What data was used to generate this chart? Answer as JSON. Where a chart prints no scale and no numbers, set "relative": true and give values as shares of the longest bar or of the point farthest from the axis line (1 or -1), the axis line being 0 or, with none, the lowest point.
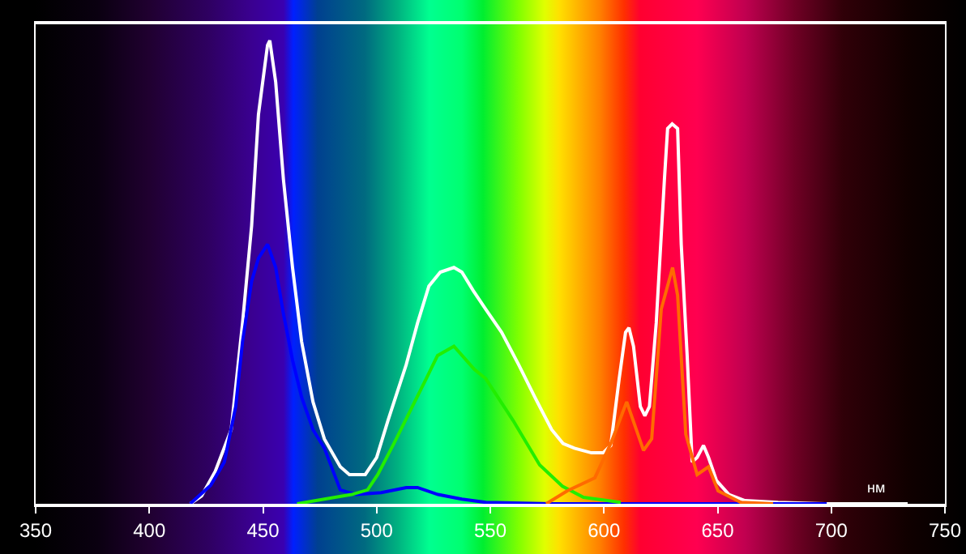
{
  "chart_data": {
    "type": "line",
    "relative": true,
    "xlabel": "нм",
    "xlim": [
      350,
      750
    ],
    "xticks": [
      350,
      400,
      450,
      500,
      550,
      600,
      650,
      700,
      750
    ],
    "marker": "none",
    "line_style": "solid",
    "series": [
      {
        "color": "#ffffff",
        "x": [
          418,
          423,
          429,
          436,
          441,
          445,
          448,
          452,
          453,
          455.6,
          459,
          463,
          467,
          472,
          477,
          484,
          488,
          495,
          500,
          505,
          513,
          518,
          523,
          528,
          534,
          537.5,
          542.5,
          548,
          555,
          562.5,
          569.6,
          577,
          582,
          587,
          594.5,
          599.6,
          603,
          606.7,
          609.5,
          611,
          613,
          616,
          618,
          620,
          623,
          626.6,
          628,
          630,
          632.4,
          634,
          636.6,
          638.8,
          641,
          643.8,
          646,
          649.5,
          655,
          662,
          676.6,
          698,
          733.6
        ],
        "values": [
          0,
          0.017,
          0.07,
          0.16,
          0.39,
          0.6,
          0.84,
          0.99,
          1,
          0.91,
          0.7,
          0.51,
          0.35,
          0.22,
          0.14,
          0.08,
          0.063,
          0.063,
          0.1,
          0.18,
          0.3,
          0.39,
          0.47,
          0.5,
          0.51,
          0.5,
          0.46,
          0.42,
          0.37,
          0.3,
          0.23,
          0.16,
          0.13,
          0.12,
          0.11,
          0.11,
          0.126,
          0.27,
          0.37,
          0.38,
          0.34,
          0.21,
          0.19,
          0.21,
          0.39,
          0.7,
          0.81,
          0.82,
          0.81,
          0.56,
          0.32,
          0.09,
          0.1,
          0.126,
          0.1,
          0.05,
          0.02,
          0.007,
          0.003,
          0,
          0
        ]
      },
      {
        "color": "#0000ff",
        "x": [
          418,
          427,
          433,
          438,
          441,
          445,
          448,
          452,
          455.6,
          459,
          463,
          467,
          472,
          477,
          484,
          491,
          502,
          513,
          518,
          527,
          537.5,
          548,
          577,
          698
        ],
        "values": [
          0,
          0.04,
          0.09,
          0.21,
          0.35,
          0.48,
          0.53,
          0.56,
          0.51,
          0.41,
          0.31,
          0.23,
          0.16,
          0.12,
          0.03,
          0.02,
          0.024,
          0.035,
          0.035,
          0.02,
          0.01,
          0.003,
          0,
          0
        ]
      },
      {
        "color": "#22ee00",
        "x": [
          465,
          489,
          496,
          500.5,
          507.6,
          514.7,
          521.8,
          526.8,
          534,
          543,
          548,
          560,
          571.7,
          581.7,
          591,
          607.4
        ],
        "values": [
          0,
          0.02,
          0.03,
          0.063,
          0.13,
          0.2,
          0.27,
          0.32,
          0.34,
          0.29,
          0.27,
          0.18,
          0.084,
          0.038,
          0.014,
          0.003
        ]
      },
      {
        "color": "#ff6a00",
        "x": [
          574.6,
          583.9,
          596,
          603,
          610,
          617.4,
          621,
          625.2,
          630.2,
          632.4,
          636,
          641,
          646,
          650.2,
          660.2,
          674.4
        ],
        "values": [
          0,
          0.028,
          0.056,
          0.13,
          0.22,
          0.115,
          0.14,
          0.42,
          0.51,
          0.45,
          0.15,
          0.063,
          0.08,
          0.028,
          0.003,
          0
        ]
      }
    ]
  }
}
